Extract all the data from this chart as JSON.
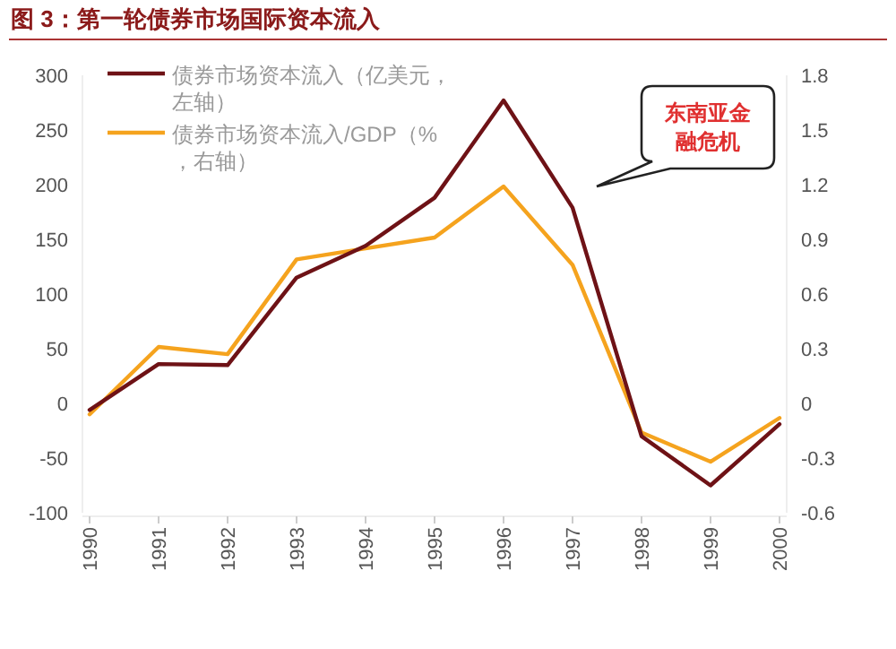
{
  "chart_data": {
    "type": "line",
    "title": "图 3：第一轮债券市场国际资本流入",
    "categories": [
      "1990",
      "1991",
      "1992",
      "1993",
      "1994",
      "1995",
      "1996",
      "1997",
      "1998",
      "1999",
      "2000"
    ],
    "series": [
      {
        "name": "债券市场资本流入（亿美元，左轴）",
        "color": "#6e1216",
        "values": [
          -6,
          36,
          35,
          115,
          144,
          188,
          277,
          179,
          -30,
          -75,
          -19
        ]
      },
      {
        "name": "债券市场资本流入/GDP（%，右轴）",
        "color": "#f5a31e",
        "axis": "y2",
        "values": [
          -0.06,
          0.31,
          0.27,
          0.79,
          0.85,
          0.91,
          1.19,
          0.76,
          -0.16,
          -0.32,
          -0.08
        ]
      }
    ],
    "ylim": [
      -100,
      300
    ],
    "yticks": [
      -100,
      -50,
      0,
      50,
      100,
      150,
      200,
      250,
      300
    ],
    "y2lim": [
      -0.6,
      1.8
    ],
    "y2ticks": [
      {
        "value": -0.6,
        "label": "-0.6"
      },
      {
        "value": -0.3,
        "label": "-0.3"
      },
      {
        "value": 0,
        "label": "0"
      },
      {
        "value": 0.3,
        "label": "0.3"
      },
      {
        "value": 0.6,
        "label": "0.6"
      },
      {
        "value": 0.9,
        "label": "0.9"
      },
      {
        "value": 1.2,
        "label": "1.2"
      },
      {
        "value": 1.5,
        "label": "1.5"
      },
      {
        "value": 1.8,
        "label": "1.8"
      }
    ],
    "legend": "top left",
    "annotations": [
      "东南亚金融危机"
    ]
  }
}
